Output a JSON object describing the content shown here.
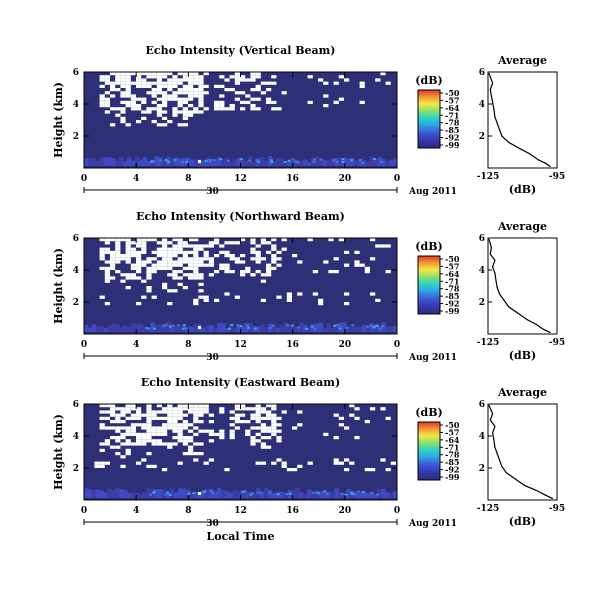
{
  "chart_data": [
    {
      "type": "heatmap",
      "title": "Echo Intensity (Vertical Beam)",
      "ylabel": "Height (km)",
      "xticks": [
        "0",
        "4",
        "8",
        "12",
        "16",
        "20",
        "0"
      ],
      "yticks": [
        "6",
        "4",
        "2"
      ],
      "date_tick": "30",
      "date_label": "Aug 2011",
      "colorbar_unit": "(dB)",
      "colorbar_ticks": [
        "-50",
        "-57",
        "-64",
        "-71",
        "-78",
        "-85",
        "-92",
        "-99"
      ],
      "xlim": [
        0,
        24
      ],
      "ylim": [
        0,
        6
      ],
      "clim": [
        -99,
        -50
      ]
    },
    {
      "type": "line",
      "title": "Average",
      "xlabel": "(dB)",
      "xticks": [
        "-125",
        "-95"
      ],
      "yticks": [
        "6",
        "4",
        "2"
      ],
      "xlim": [
        -125,
        -95
      ],
      "ylim": [
        0,
        6
      ],
      "x": [
        -98,
        -100,
        -103,
        -107,
        -111,
        -116,
        -119,
        -120,
        -121,
        -122,
        -122.5,
        -123,
        -123.5,
        -124,
        -123,
        -124.5
      ],
      "y": [
        0.1,
        0.3,
        0.5,
        0.9,
        1.2,
        1.6,
        2.0,
        2.4,
        2.8,
        3.2,
        3.7,
        4.1,
        4.5,
        4.9,
        5.3,
        5.9
      ]
    },
    {
      "type": "heatmap",
      "title": "Echo Intensity (Northward Beam)",
      "ylabel": "Height (km)",
      "xticks": [
        "0",
        "4",
        "8",
        "12",
        "16",
        "20",
        "0"
      ],
      "yticks": [
        "6",
        "4",
        "2"
      ],
      "date_tick": "30",
      "date_label": "Aug 2011",
      "colorbar_unit": "(dB)",
      "colorbar_ticks": [
        "-50",
        "-57",
        "-64",
        "-71",
        "-78",
        "-85",
        "-92",
        "-99"
      ],
      "xlim": [
        0,
        24
      ],
      "ylim": [
        0,
        6
      ],
      "clim": [
        -99,
        -50
      ]
    },
    {
      "type": "line",
      "title": "Average",
      "xlabel": "(dB)",
      "xticks": [
        "-125",
        "-95"
      ],
      "yticks": [
        "6",
        "4",
        "2"
      ],
      "xlim": [
        -125,
        -95
      ],
      "ylim": [
        0,
        6
      ],
      "x": [
        -98,
        -101,
        -104,
        -108,
        -112,
        -116,
        -118,
        -120,
        -121,
        -121.5,
        -122,
        -123,
        -122,
        -124,
        -123.5,
        -124.5
      ],
      "y": [
        0.1,
        0.3,
        0.6,
        0.9,
        1.3,
        1.7,
        2.1,
        2.5,
        2.9,
        3.3,
        3.8,
        4.2,
        4.6,
        5.0,
        5.4,
        5.9
      ]
    },
    {
      "type": "heatmap",
      "title": "Echo Intensity (Eastward Beam)",
      "ylabel": "Height (km)",
      "xlabel": "Local Time",
      "xticks": [
        "0",
        "4",
        "8",
        "12",
        "16",
        "20",
        "0"
      ],
      "yticks": [
        "6",
        "4",
        "2"
      ],
      "date_tick": "30",
      "date_label": "Aug 2011",
      "colorbar_unit": "(dB)",
      "colorbar_ticks": [
        "-50",
        "-57",
        "-64",
        "-71",
        "-78",
        "-85",
        "-92",
        "-99"
      ],
      "xlim": [
        0,
        24
      ],
      "ylim": [
        0,
        6
      ],
      "clim": [
        -99,
        -50
      ]
    },
    {
      "type": "line",
      "title": "Average",
      "xlabel": "(dB)",
      "xticks": [
        "-125",
        "-95"
      ],
      "yticks": [
        "6",
        "4",
        "2"
      ],
      "xlim": [
        -125,
        -95
      ],
      "ylim": [
        0,
        6
      ],
      "x": [
        -97,
        -100,
        -104,
        -109,
        -113,
        -117,
        -119,
        -120,
        -121,
        -122,
        -122.5,
        -123,
        -122,
        -124,
        -123,
        -124.5
      ],
      "y": [
        0.1,
        0.3,
        0.6,
        0.9,
        1.3,
        1.7,
        2.1,
        2.5,
        2.9,
        3.3,
        3.8,
        4.2,
        4.6,
        5.0,
        5.4,
        5.9
      ]
    }
  ]
}
